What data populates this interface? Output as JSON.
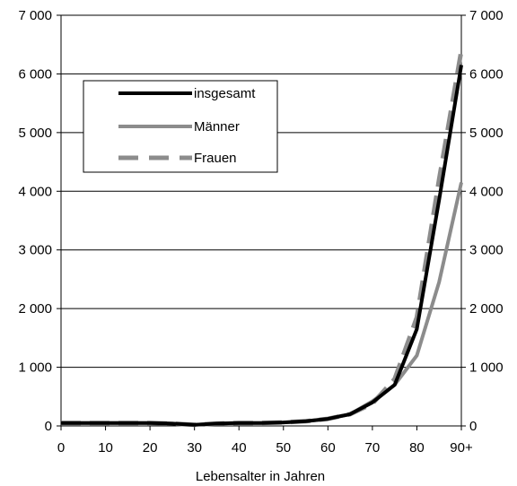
{
  "chart_data": {
    "type": "line",
    "xlabel": "Lebensalter in Jahren",
    "x": [
      0,
      5,
      10,
      15,
      20,
      25,
      30,
      35,
      40,
      45,
      50,
      55,
      60,
      65,
      70,
      75,
      80,
      85,
      90
    ],
    "x_tick_labels": [
      "0",
      "10",
      "20",
      "30",
      "40",
      "50",
      "60",
      "70",
      "80",
      "90+"
    ],
    "x_tick_values": [
      0,
      10,
      20,
      30,
      40,
      50,
      60,
      70,
      80,
      90
    ],
    "xlim": [
      0,
      90
    ],
    "ylim": [
      0,
      7000
    ],
    "y_tick_labels": [
      "0",
      "1 000",
      "2 000",
      "3 000",
      "4 000",
      "5 000",
      "6 000",
      "7 000"
    ],
    "y_tick_values": [
      0,
      1000,
      2000,
      3000,
      4000,
      5000,
      6000,
      7000
    ],
    "grid": true,
    "legend_position": "top-left",
    "series": [
      {
        "name": "insgesamt",
        "color": "#000000",
        "style": "solid",
        "values": [
          50,
          50,
          50,
          50,
          50,
          40,
          20,
          40,
          50,
          50,
          60,
          80,
          120,
          200,
          400,
          700,
          1650,
          3850,
          6150
        ]
      },
      {
        "name": "Männer",
        "color": "#8c8c8c",
        "style": "solid",
        "values": [
          50,
          50,
          50,
          50,
          50,
          40,
          20,
          40,
          50,
          50,
          60,
          80,
          120,
          200,
          420,
          700,
          1200,
          2450,
          4150
        ]
      },
      {
        "name": "Frauen",
        "color": "#8c8c8c",
        "style": "dashed",
        "values": [
          50,
          50,
          50,
          50,
          50,
          40,
          20,
          40,
          50,
          50,
          60,
          80,
          120,
          200,
          380,
          800,
          1850,
          4200,
          6400
        ]
      }
    ]
  }
}
